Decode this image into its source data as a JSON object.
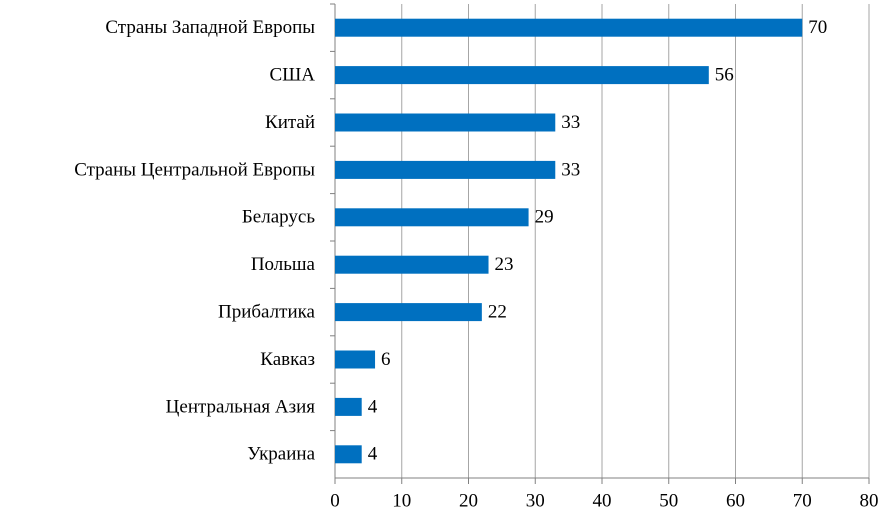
{
  "chart_data": {
    "type": "bar",
    "orientation": "horizontal",
    "categories": [
      "Страны Западной Европы",
      "США",
      "Китай",
      "Страны Центральной Европы",
      "Беларусь",
      "Польша",
      "Прибалтика",
      "Кавказ",
      "Центральная Азия",
      "Украина"
    ],
    "values": [
      70,
      56,
      33,
      33,
      29,
      23,
      22,
      6,
      4,
      4
    ],
    "color": "#0070c0",
    "xlim": [
      0,
      80
    ],
    "xticks": [
      0,
      10,
      20,
      30,
      40,
      50,
      60,
      70,
      80
    ],
    "grid": true
  }
}
